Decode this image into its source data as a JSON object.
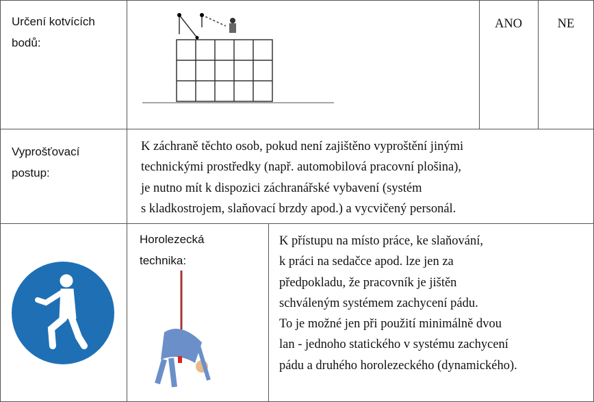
{
  "rows": [
    {
      "label": [
        "Určení kotvících",
        "bodů:"
      ],
      "options": [
        "ANO",
        "NE"
      ]
    },
    {
      "label": [
        "Vyprošťovací",
        "postup:"
      ],
      "text": [
        "K záchraně těchto osob, pokud není zajištěno vyproštění jinými",
        "technickými prostředky (např. automobilová pracovní plošina),",
        "je nutno mít k dispozici záchranářské vybavení (systém",
        "s kladkostrojem, slaňovací brzdy apod.) a vycvičený personál."
      ]
    },
    {
      "label": [
        "Horolezecká",
        "technika:"
      ],
      "text": [
        "K přístupu na místo práce, ke slaňování,",
        "k práci na sedačce apod. lze jen za",
        "předpokladu, že pracovník je jištěn",
        "schváleným systémem zachycení pádu.",
        "To je možné jen při použití minimálně dvou",
        "lan - jednoho statického v systému zachycení",
        "pádu a druhého horolezeckého (dynamického)."
      ]
    }
  ]
}
